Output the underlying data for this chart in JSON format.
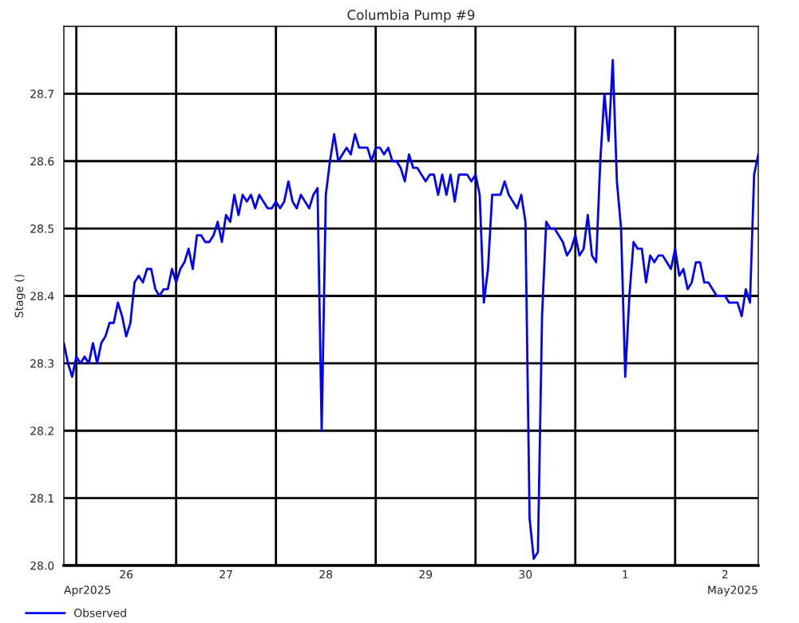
{
  "chart_data": {
    "type": "line",
    "title": "Columbia Pump #9",
    "ylabel": "Stage ()",
    "series": [
      {
        "name": "Observed",
        "color": "#0000ff",
        "x": [
          "2025-04-25T21:00",
          "2025-04-25T22:00",
          "2025-04-25T23:00",
          "2025-04-26T00:00",
          "2025-04-26T01:00",
          "2025-04-26T02:00",
          "2025-04-26T03:00",
          "2025-04-26T04:00",
          "2025-04-26T05:00",
          "2025-04-26T06:00",
          "2025-04-26T07:00",
          "2025-04-26T08:00",
          "2025-04-26T09:00",
          "2025-04-26T10:00",
          "2025-04-26T11:00",
          "2025-04-26T12:00",
          "2025-04-26T13:00",
          "2025-04-26T14:00",
          "2025-04-26T15:00",
          "2025-04-26T16:00",
          "2025-04-26T17:00",
          "2025-04-26T18:00",
          "2025-04-26T19:00",
          "2025-04-26T20:00",
          "2025-04-26T21:00",
          "2025-04-26T22:00",
          "2025-04-26T23:00",
          "2025-04-27T00:00",
          "2025-04-27T01:00",
          "2025-04-27T02:00",
          "2025-04-27T03:00",
          "2025-04-27T04:00",
          "2025-04-27T05:00",
          "2025-04-27T06:00",
          "2025-04-27T07:00",
          "2025-04-27T08:00",
          "2025-04-27T09:00",
          "2025-04-27T10:00",
          "2025-04-27T11:00",
          "2025-04-27T12:00",
          "2025-04-27T13:00",
          "2025-04-27T14:00",
          "2025-04-27T15:00",
          "2025-04-27T16:00",
          "2025-04-27T17:00",
          "2025-04-27T18:00",
          "2025-04-27T19:00",
          "2025-04-27T20:00",
          "2025-04-27T21:00",
          "2025-04-27T22:00",
          "2025-04-27T23:00",
          "2025-04-28T00:00",
          "2025-04-28T01:00",
          "2025-04-28T02:00",
          "2025-04-28T03:00",
          "2025-04-28T04:00",
          "2025-04-28T05:00",
          "2025-04-28T06:00",
          "2025-04-28T07:00",
          "2025-04-28T08:00",
          "2025-04-28T09:00",
          "2025-04-28T10:00",
          "2025-04-28T11:00",
          "2025-04-28T12:00",
          "2025-04-28T13:00",
          "2025-04-28T14:00",
          "2025-04-28T15:00",
          "2025-04-28T16:00",
          "2025-04-28T17:00",
          "2025-04-28T18:00",
          "2025-04-28T19:00",
          "2025-04-28T20:00",
          "2025-04-28T21:00",
          "2025-04-28T22:00",
          "2025-04-28T23:00",
          "2025-04-29T00:00",
          "2025-04-29T01:00",
          "2025-04-29T02:00",
          "2025-04-29T03:00",
          "2025-04-29T04:00",
          "2025-04-29T05:00",
          "2025-04-29T06:00",
          "2025-04-29T07:00",
          "2025-04-29T08:00",
          "2025-04-29T09:00",
          "2025-04-29T10:00",
          "2025-04-29T11:00",
          "2025-04-29T12:00",
          "2025-04-29T13:00",
          "2025-04-29T14:00",
          "2025-04-29T15:00",
          "2025-04-29T16:00",
          "2025-04-29T17:00",
          "2025-04-29T18:00",
          "2025-04-29T19:00",
          "2025-04-29T20:00",
          "2025-04-29T21:00",
          "2025-04-29T22:00",
          "2025-04-29T23:00",
          "2025-04-30T00:00",
          "2025-04-30T01:00",
          "2025-04-30T02:00",
          "2025-04-30T03:00",
          "2025-04-30T04:00",
          "2025-04-30T05:00",
          "2025-04-30T06:00",
          "2025-04-30T07:00",
          "2025-04-30T08:00",
          "2025-04-30T09:00",
          "2025-04-30T10:00",
          "2025-04-30T11:00",
          "2025-04-30T12:00",
          "2025-04-30T13:00",
          "2025-04-30T14:00",
          "2025-04-30T15:00",
          "2025-04-30T16:00",
          "2025-04-30T17:00",
          "2025-04-30T18:00",
          "2025-04-30T19:00",
          "2025-04-30T20:00",
          "2025-04-30T21:00",
          "2025-04-30T22:00",
          "2025-04-30T23:00",
          "2025-05-01T00:00",
          "2025-05-01T01:00",
          "2025-05-01T02:00",
          "2025-05-01T03:00",
          "2025-05-01T04:00",
          "2025-05-01T05:00",
          "2025-05-01T06:00",
          "2025-05-01T07:00",
          "2025-05-01T08:00",
          "2025-05-01T09:00",
          "2025-05-01T10:00",
          "2025-05-01T11:00",
          "2025-05-01T12:00",
          "2025-05-01T13:00",
          "2025-05-01T14:00",
          "2025-05-01T15:00",
          "2025-05-01T16:00",
          "2025-05-01T17:00",
          "2025-05-01T18:00",
          "2025-05-01T19:00",
          "2025-05-01T20:00",
          "2025-05-01T21:00",
          "2025-05-01T22:00",
          "2025-05-01T23:00",
          "2025-05-02T00:00",
          "2025-05-02T01:00",
          "2025-05-02T02:00",
          "2025-05-02T03:00",
          "2025-05-02T04:00",
          "2025-05-02T05:00",
          "2025-05-02T06:00",
          "2025-05-02T07:00",
          "2025-05-02T08:00",
          "2025-05-02T09:00",
          "2025-05-02T10:00",
          "2025-05-02T11:00",
          "2025-05-02T12:00",
          "2025-05-02T13:00",
          "2025-05-02T14:00",
          "2025-05-02T15:00",
          "2025-05-02T16:00",
          "2025-05-02T17:00",
          "2025-05-02T18:00",
          "2025-05-02T19:00",
          "2025-05-02T20:00"
        ],
        "values": [
          28.33,
          28.3,
          28.28,
          28.31,
          28.3,
          28.31,
          28.3,
          28.33,
          28.3,
          28.33,
          28.34,
          28.36,
          28.36,
          28.39,
          28.37,
          28.34,
          28.36,
          28.42,
          28.43,
          28.42,
          28.44,
          28.44,
          28.41,
          28.4,
          28.41,
          28.41,
          28.44,
          28.42,
          28.44,
          28.45,
          28.47,
          28.44,
          28.49,
          28.49,
          28.48,
          28.48,
          28.49,
          28.51,
          28.48,
          28.52,
          28.51,
          28.55,
          28.52,
          28.55,
          28.54,
          28.55,
          28.53,
          28.55,
          28.54,
          28.53,
          28.53,
          28.54,
          28.53,
          28.54,
          28.57,
          28.54,
          28.53,
          28.55,
          28.54,
          28.53,
          28.55,
          28.56,
          28.2,
          28.55,
          28.6,
          28.64,
          28.6,
          28.61,
          28.62,
          28.61,
          28.64,
          28.62,
          28.62,
          28.62,
          28.6,
          28.62,
          28.62,
          28.61,
          28.62,
          28.6,
          28.6,
          28.59,
          28.57,
          28.61,
          28.59,
          28.59,
          28.58,
          28.57,
          28.58,
          28.58,
          28.55,
          28.58,
          28.55,
          28.58,
          28.54,
          28.58,
          28.58,
          28.58,
          28.57,
          28.58,
          28.55,
          28.39,
          28.44,
          28.55,
          28.55,
          28.55,
          28.57,
          28.55,
          28.54,
          28.53,
          28.55,
          28.51,
          28.07,
          28.01,
          28.02,
          28.37,
          28.51,
          28.5,
          28.5,
          28.49,
          28.48,
          28.46,
          28.47,
          28.49,
          28.46,
          28.47,
          28.52,
          28.46,
          28.45,
          28.6,
          28.7,
          28.63,
          28.75,
          28.57,
          28.5,
          28.28,
          28.4,
          28.48,
          28.47,
          28.47,
          28.42,
          28.46,
          28.45,
          28.46,
          28.46,
          28.45,
          28.44,
          28.47,
          28.43,
          28.44,
          28.41,
          28.42,
          28.45,
          28.45,
          28.42,
          28.42,
          28.41,
          28.4,
          28.4,
          28.4,
          28.39,
          28.39,
          28.39,
          28.37,
          28.41,
          28.39,
          28.58,
          28.61
        ]
      }
    ],
    "xlim": [
      "2025-04-25T21:00",
      "2025-05-02T20:00"
    ],
    "xticks": [
      {
        "value": "2025-04-26",
        "label": null
      },
      {
        "value": "2025-04-26T12:00",
        "label": "26"
      },
      {
        "value": "2025-04-27",
        "label": null
      },
      {
        "value": "2025-04-27T12:00",
        "label": "27"
      },
      {
        "value": "2025-04-28",
        "label": null
      },
      {
        "value": "2025-04-28T12:00",
        "label": "28"
      },
      {
        "value": "2025-04-29",
        "label": null
      },
      {
        "value": "2025-04-29T12:00",
        "label": "29"
      },
      {
        "value": "2025-04-30",
        "label": null
      },
      {
        "value": "2025-04-30T12:00",
        "label": "30"
      },
      {
        "value": "2025-05-01",
        "label": null
      },
      {
        "value": "2025-05-01T12:00",
        "label": "1"
      },
      {
        "value": "2025-05-02",
        "label": null
      },
      {
        "value": "2025-05-02T12:00",
        "label": "2"
      }
    ],
    "ylim": [
      28.0,
      28.8
    ],
    "yticks": [
      {
        "value": 28.0,
        "label": "28.0"
      },
      {
        "value": 28.1,
        "label": "28.1"
      },
      {
        "value": 28.2,
        "label": "28.2"
      },
      {
        "value": 28.3,
        "label": "28.3"
      },
      {
        "value": 28.4,
        "label": "28.4"
      },
      {
        "value": 28.5,
        "label": "28.5"
      },
      {
        "value": 28.6,
        "label": "28.6"
      },
      {
        "value": 28.7,
        "label": "28.7"
      }
    ],
    "annotations": [
      "Apr2025",
      "May2025"
    ],
    "grid": true,
    "legend": "bottom left",
    "line_style": "solid",
    "marker": "none"
  }
}
